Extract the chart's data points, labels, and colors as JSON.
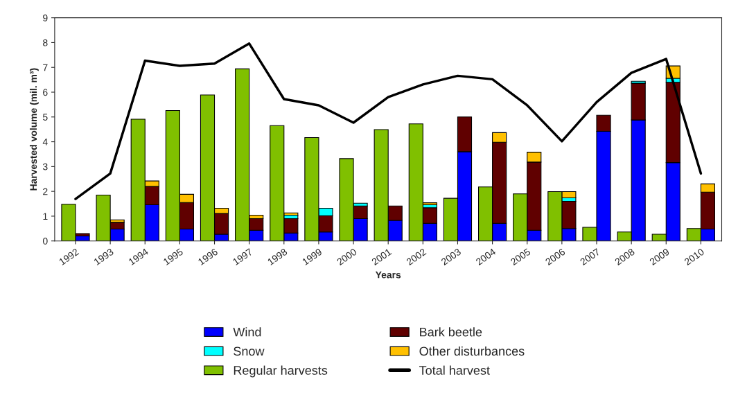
{
  "chart_data": {
    "type": "bar",
    "xlabel": "Years",
    "ylabel": "Harvested volume (mil. m³)",
    "categories": [
      "1992",
      "1993",
      "1994",
      "1995",
      "1996",
      "1997",
      "1998",
      "1999",
      "2000",
      "2001",
      "2002",
      "2003",
      "2004",
      "2005",
      "2006",
      "2007",
      "2008",
      "2009",
      "2010"
    ],
    "ylim": [
      0,
      9
    ],
    "yticks": [
      0,
      1,
      2,
      3,
      4,
      5,
      6,
      7,
      8,
      9
    ],
    "grid": false,
    "legend": "bottom",
    "series": [
      {
        "name": "Wind",
        "color": "#0000ff",
        "values": [
          0.2,
          0.48,
          1.46,
          0.48,
          0.27,
          0.43,
          0.32,
          0.36,
          0.9,
          0.83,
          0.71,
          3.6,
          0.71,
          0.43,
          0.5,
          4.42,
          4.88,
          3.16,
          0.48
        ],
        "base": [
          0,
          0,
          0,
          0,
          0,
          0,
          0,
          0,
          0,
          0,
          0,
          0,
          0,
          0,
          0,
          0,
          0,
          0,
          0
        ]
      },
      {
        "name": "Bark beetle",
        "color": "#600000",
        "values": [
          0.1,
          0.27,
          0.74,
          1.07,
          0.84,
          0.47,
          0.58,
          0.66,
          0.51,
          0.58,
          0.63,
          1.4,
          3.27,
          2.75,
          1.1,
          0.65,
          1.48,
          3.24,
          1.49
        ],
        "base": [
          0.2,
          0.48,
          1.46,
          0.48,
          0.27,
          0.43,
          0.32,
          0.36,
          0.9,
          0.83,
          0.71,
          3.6,
          0.71,
          0.43,
          0.5,
          4.42,
          4.88,
          3.16,
          0.48
        ]
      },
      {
        "name": "Snow",
        "color": "#00ffff",
        "values": [
          null,
          null,
          null,
          null,
          null,
          null,
          0.14,
          0.3,
          0.11,
          null,
          0.12,
          null,
          null,
          null,
          0.14,
          null,
          0.08,
          0.16,
          null
        ],
        "base": [
          null,
          null,
          null,
          null,
          null,
          null,
          0.9,
          1.02,
          1.41,
          null,
          1.34,
          null,
          null,
          null,
          1.6,
          null,
          6.36,
          6.4,
          null
        ]
      },
      {
        "name": "Other disturbances",
        "color": "#ffc000",
        "values": [
          null,
          0.1,
          0.22,
          0.33,
          0.21,
          0.14,
          0.09,
          null,
          null,
          null,
          0.08,
          null,
          0.39,
          0.4,
          0.25,
          null,
          null,
          0.5,
          0.33
        ],
        "base": [
          null,
          0.75,
          2.2,
          1.55,
          1.11,
          0.9,
          1.04,
          null,
          null,
          null,
          1.46,
          null,
          3.98,
          3.18,
          1.74,
          null,
          null,
          6.56,
          1.97
        ]
      },
      {
        "name": "Regular harvests",
        "color": "#80c000",
        "values": [
          1.48,
          1.85,
          4.91,
          5.26,
          5.89,
          6.94,
          4.65,
          4.17,
          3.32,
          4.49,
          4.72,
          1.72,
          2.18,
          1.9,
          1.99,
          0.55,
          0.36,
          0.27,
          0.5
        ]
      },
      {
        "name": "Total harvest",
        "type": "line",
        "color": "#000000",
        "values": [
          1.69,
          2.72,
          7.27,
          7.06,
          7.15,
          7.96,
          5.72,
          5.47,
          4.77,
          5.8,
          6.31,
          6.66,
          6.52,
          5.47,
          4.02,
          5.6,
          6.78,
          7.34,
          2.72
        ]
      }
    ]
  }
}
